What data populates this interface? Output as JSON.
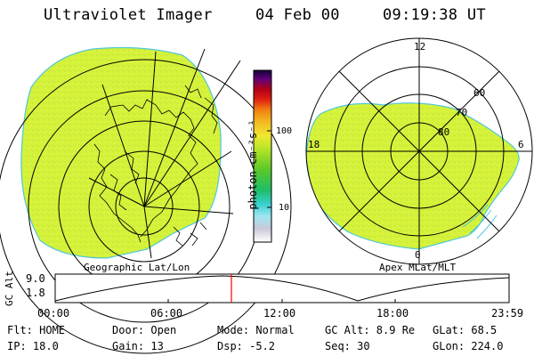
{
  "header": {
    "instrument": "Ultraviolet Imager",
    "date": "04 Feb 00",
    "time": "09:19:38 UT"
  },
  "colors": {
    "fill": "#d6f23a",
    "fill_stroke": "#c4e436",
    "noise": "#aee23c",
    "edge": "#4fc8d8",
    "marker": "#ff0000"
  },
  "geo_map": {
    "caption": "Geographic Lat/Lon",
    "icon": "earth-map-icon"
  },
  "polar_map": {
    "caption": "Apex MLat/MLT",
    "mlt_labels": {
      "top": "12",
      "left": "18",
      "right": "6",
      "bottom": "0"
    },
    "mlat_labels": [
      "60",
      "70",
      "80"
    ]
  },
  "colorbar": {
    "unit_label": "photon cm⁻²s⁻¹",
    "ticks": [
      "100",
      "10"
    ],
    "scale": "log"
  },
  "altitude_plot": {
    "ylabel": "GC Alt",
    "yticks": [
      "9.0",
      "1.8"
    ],
    "xticks": [
      "00:00",
      "06:00",
      "12:00",
      "18:00",
      "23:59"
    ],
    "marker_time_fraction": 0.388
  },
  "status": {
    "row1": {
      "flt": "Flt: HOME",
      "door": "Door: Open",
      "mode": "Mode: Normal",
      "gc_alt": "GC Alt: 8.9 Re",
      "glat": "GLat:  68.5"
    },
    "row2": {
      "ip": "IP: 18.0",
      "gain": "Gain: 13",
      "dsp": "Dsp:   -5.2",
      "seq": "Seq: 30",
      "glon": "GLon: 224.0"
    }
  }
}
